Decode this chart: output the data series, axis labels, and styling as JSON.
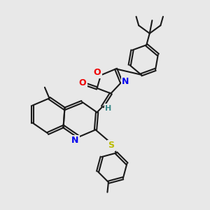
{
  "bg_color": "#e8e8e8",
  "bond_color": "#1a1a1a",
  "N_color": "#0000ee",
  "O_color": "#ee0000",
  "S_color": "#bbbb00",
  "H_color": "#3a8888",
  "lw": 1.5,
  "fig_size": [
    3.0,
    3.0
  ],
  "dpi": 100,
  "xlim": [
    0,
    10
  ],
  "ylim": [
    0,
    10
  ]
}
